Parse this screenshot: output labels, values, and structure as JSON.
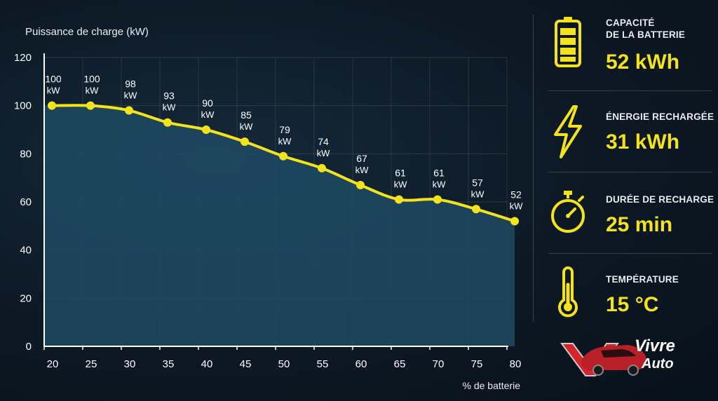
{
  "chart_data": {
    "type": "area",
    "ylabel": "Puissance de charge (kW)",
    "xlabel": "% de batterie",
    "x": [
      20,
      25,
      30,
      35,
      40,
      45,
      50,
      55,
      60,
      65,
      70,
      75,
      80
    ],
    "xlim": [
      20,
      80
    ],
    "ylim": [
      0,
      120
    ],
    "yticks": [
      0,
      20,
      40,
      60,
      80,
      100,
      120
    ],
    "xticks": [
      20,
      25,
      30,
      35,
      40,
      45,
      50,
      55,
      60,
      65,
      70,
      75,
      80
    ],
    "points": [
      {
        "x": 21,
        "y": 100,
        "label": "100",
        "unit": "kW"
      },
      {
        "x": 26,
        "y": 100,
        "label": "100",
        "unit": "kW"
      },
      {
        "x": 31,
        "y": 98,
        "label": "98",
        "unit": "kW"
      },
      {
        "x": 36,
        "y": 93,
        "label": "93",
        "unit": "kW"
      },
      {
        "x": 41,
        "y": 90,
        "label": "90",
        "unit": "kW"
      },
      {
        "x": 46,
        "y": 85,
        "label": "85",
        "unit": "kW"
      },
      {
        "x": 51,
        "y": 79,
        "label": "79",
        "unit": "kW"
      },
      {
        "x": 56,
        "y": 74,
        "label": "74",
        "unit": "kW"
      },
      {
        "x": 61,
        "y": 67,
        "label": "67",
        "unit": "kW"
      },
      {
        "x": 66,
        "y": 61,
        "label": "61",
        "unit": "kW"
      },
      {
        "x": 71,
        "y": 61,
        "label": "61",
        "unit": "kW"
      },
      {
        "x": 76,
        "y": 57,
        "label": "57",
        "unit": "kW"
      },
      {
        "x": 81,
        "y": 52,
        "label": "52",
        "unit": "kW"
      }
    ],
    "line_color": "#f4e21a",
    "fill_color": "#1f4a63",
    "grid": true
  },
  "stats": [
    {
      "icon": "battery-icon",
      "label_lines": [
        "CAPACITÉ",
        "DE LA BATTERIE"
      ],
      "value": "52 kWh"
    },
    {
      "icon": "lightning-icon",
      "label_lines": [
        "ÉNERGIE RECHARGÉE"
      ],
      "value": "31 kWh"
    },
    {
      "icon": "stopwatch-icon",
      "label_lines": [
        "DURÉE DE RECHARGE"
      ],
      "value": "25 min"
    },
    {
      "icon": "thermometer-icon",
      "label_lines": [
        "TEMPÉRATURE"
      ],
      "value": "15 °C"
    }
  ],
  "logo": {
    "line1": "Vivre",
    "line2": "Auto"
  },
  "colors": {
    "accent": "#f4e21a",
    "brand_red": "#d2262c"
  }
}
